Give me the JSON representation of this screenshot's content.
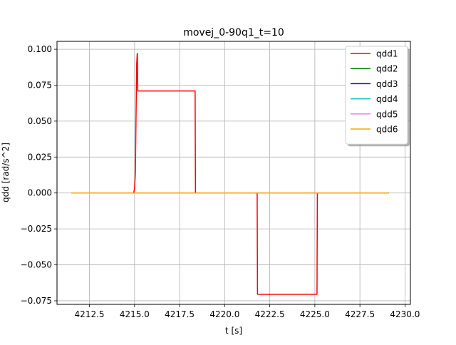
{
  "chart_data": {
    "type": "line",
    "title": "movej_0-90q1_t=10",
    "xlabel": "t [s]",
    "ylabel": "qdd [rad/s^2]",
    "xlim": [
      4210.7,
      4230.3
    ],
    "ylim": [
      -0.0775,
      0.1055
    ],
    "xticks": [
      4212.5,
      4215.0,
      4217.5,
      4220.0,
      4222.5,
      4225.0,
      4227.5,
      4230.0
    ],
    "xtick_labels": [
      "4212.5",
      "4215.0",
      "4217.5",
      "4220.0",
      "4222.5",
      "4225.0",
      "4227.5",
      "4230.0"
    ],
    "yticks": [
      -0.075,
      -0.05,
      -0.025,
      0.0,
      0.025,
      0.05,
      0.075,
      0.1
    ],
    "ytick_labels": [
      "−0.075",
      "−0.050",
      "−0.025",
      "0.000",
      "0.025",
      "0.050",
      "0.075",
      "0.100"
    ],
    "grid": true,
    "legend_position": "top-right",
    "series": [
      {
        "name": "qdd1",
        "color": "#ff0000",
        "x": [
          4211.5,
          4214.95,
          4215.0,
          4215.05,
          4215.08,
          4215.12,
          4215.15,
          4215.16,
          4215.17,
          4215.18,
          4215.2,
          4215.22,
          4218.36,
          4218.38,
          4221.8,
          4221.82,
          4225.12,
          4225.14,
          4229.1
        ],
        "y": [
          0.0,
          0.0,
          0.003,
          0.015,
          0.05,
          0.09,
          0.097,
          0.097,
          0.08,
          0.071,
          0.071,
          0.071,
          0.071,
          0.0,
          0.0,
          -0.0705,
          -0.0705,
          0.0,
          0.0
        ]
      },
      {
        "name": "qdd2",
        "color": "#008000",
        "x": [
          4211.5,
          4229.1
        ],
        "y": [
          0.0,
          0.0
        ]
      },
      {
        "name": "qdd3",
        "color": "#0000ff",
        "x": [
          4211.5,
          4229.1
        ],
        "y": [
          0.0,
          0.0
        ]
      },
      {
        "name": "qdd4",
        "color": "#00bfbf",
        "x": [
          4211.5,
          4229.1
        ],
        "y": [
          0.0,
          0.0
        ]
      },
      {
        "name": "qdd5",
        "color": "#ee82ee",
        "x": [
          4211.5,
          4229.1
        ],
        "y": [
          0.0,
          0.0
        ]
      },
      {
        "name": "qdd6",
        "color": "#ffa500",
        "x": [
          4211.5,
          4229.1
        ],
        "y": [
          0.0,
          0.0
        ]
      }
    ]
  }
}
